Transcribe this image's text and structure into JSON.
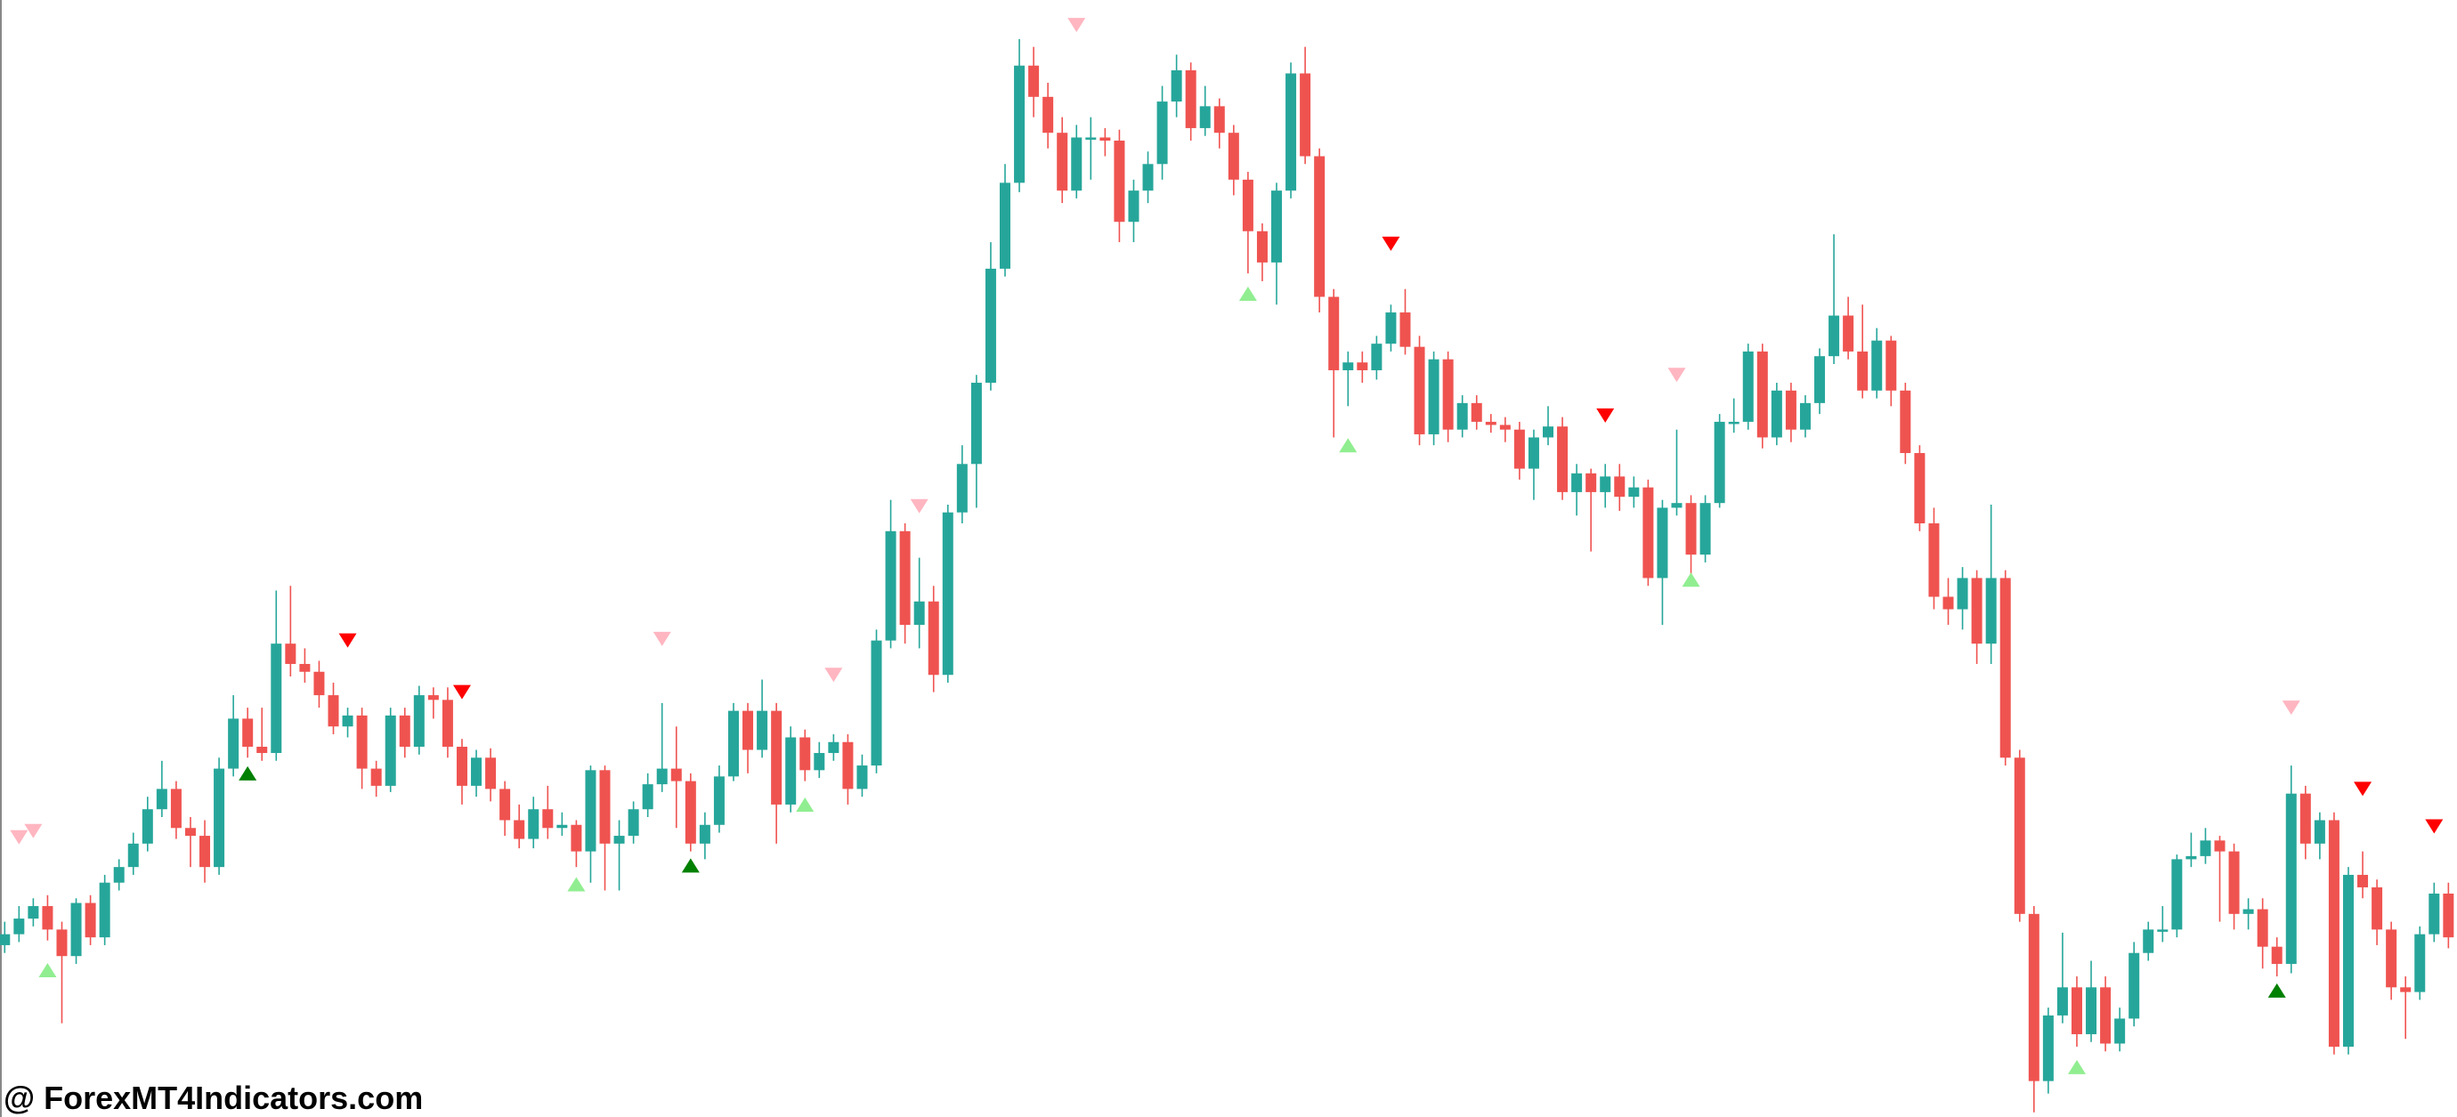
{
  "chart_data": {
    "type": "candlestick",
    "open": [
      110,
      117,
      127,
      135,
      120,
      103,
      137,
      115,
      150,
      160,
      175,
      197,
      210,
      185,
      180,
      160,
      223,
      255,
      237,
      233,
      303,
      290,
      285,
      270,
      250,
      257,
      223,
      212,
      257,
      237,
      270,
      267,
      237,
      212,
      230,
      210,
      190,
      178,
      197,
      185,
      187,
      170,
      222,
      175,
      180,
      197,
      213,
      223,
      215,
      175,
      187,
      218,
      260,
      235,
      260,
      200,
      243,
      222,
      233,
      240,
      210,
      225,
      305,
      375,
      315,
      330,
      283,
      387,
      418,
      470,
      543,
      598,
      673,
      653,
      630,
      593,
      627,
      627,
      625,
      573,
      593,
      610,
      650,
      670,
      633,
      647,
      630,
      600,
      567,
      547,
      593,
      668,
      615,
      525,
      478,
      483,
      478,
      495,
      515,
      493,
      437,
      485,
      440,
      457,
      445,
      443,
      440,
      415,
      435,
      442,
      400,
      412,
      400,
      410,
      397,
      403,
      345,
      390,
      393,
      360,
      393,
      445,
      445,
      490,
      435,
      465,
      440,
      457,
      487,
      513,
      490,
      465,
      497,
      465,
      425,
      380,
      333,
      325,
      345,
      303,
      345,
      230,
      130,
      23,
      65,
      83,
      53,
      83,
      47,
      63,
      105,
      120,
      120,
      165,
      167,
      177,
      170,
      130,
      133,
      109,
      98,
      207,
      175,
      190,
      45,
      155,
      147,
      120,
      83,
      80,
      117,
      143
    ],
    "high": [
      125,
      135,
      140,
      142,
      125,
      140,
      142,
      155,
      165,
      182,
      205,
      228,
      215,
      192,
      190,
      230,
      270,
      262,
      262,
      337,
      340,
      300,
      292,
      278,
      262,
      262,
      228,
      262,
      262,
      276,
      275,
      275,
      242,
      235,
      236,
      215,
      200,
      205,
      212,
      195,
      190,
      225,
      225,
      190,
      202,
      220,
      265,
      250,
      220,
      195,
      225,
      265,
      265,
      280,
      265,
      250,
      248,
      240,
      245,
      245,
      232,
      312,
      395,
      380,
      358,
      340,
      392,
      430,
      475,
      560,
      610,
      690,
      685,
      662,
      640,
      635,
      640,
      633,
      632,
      600,
      618,
      660,
      680,
      675,
      660,
      652,
      635,
      605,
      572,
      598,
      675,
      685,
      620,
      530,
      490,
      490,
      500,
      520,
      530,
      500,
      490,
      490,
      462,
      462,
      450,
      448,
      445,
      440,
      455,
      448,
      418,
      415,
      418,
      418,
      410,
      408,
      395,
      440,
      398,
      398,
      450,
      460,
      495,
      495,
      470,
      470,
      462,
      492,
      565,
      525,
      520,
      505,
      500,
      470,
      430,
      390,
      345,
      352,
      350,
      392,
      350,
      235,
      135,
      70,
      118,
      90,
      100,
      90,
      70,
      112,
      125,
      135,
      168,
      182,
      185,
      180,
      175,
      140,
      140,
      115,
      225,
      212,
      195,
      195,
      160,
      170,
      152,
      125,
      90,
      122,
      150,
      150
    ],
    "low": [
      105,
      112,
      122,
      113,
      60,
      98,
      110,
      110,
      145,
      155,
      170,
      192,
      178,
      160,
      150,
      155,
      218,
      230,
      228,
      228,
      282,
      278,
      262,
      245,
      243,
      210,
      205,
      208,
      230,
      232,
      255,
      230,
      200,
      205,
      202,
      180,
      172,
      172,
      178,
      180,
      160,
      150,
      145,
      145,
      175,
      192,
      208,
      185,
      170,
      165,
      182,
      215,
      220,
      230,
      175,
      195,
      215,
      217,
      228,
      200,
      205,
      220,
      300,
      303,
      300,
      272,
      278,
      380,
      390,
      465,
      538,
      592,
      640,
      620,
      585,
      588,
      600,
      615,
      560,
      560,
      585,
      600,
      640,
      625,
      628,
      620,
      590,
      540,
      535,
      520,
      588,
      610,
      515,
      435,
      455,
      470,
      472,
      490,
      488,
      430,
      430,
      432,
      435,
      440,
      438,
      432,
      408,
      395,
      430,
      395,
      385,
      362,
      390,
      388,
      390,
      340,
      315,
      385,
      345,
      355,
      390,
      438,
      440,
      428,
      430,
      432,
      435,
      450,
      482,
      485,
      460,
      460,
      455,
      418,
      375,
      325,
      315,
      312,
      290,
      290,
      225,
      125,
      3,
      15,
      60,
      45,
      48,
      42,
      42,
      58,
      100,
      112,
      115,
      160,
      162,
      125,
      120,
      120,
      95,
      90,
      92,
      165,
      165,
      40,
      40,
      140,
      110,
      75,
      50,
      75,
      112,
      108
    ],
    "close": [
      117,
      127,
      135,
      120,
      103,
      137,
      115,
      150,
      160,
      175,
      197,
      210,
      185,
      180,
      160,
      223,
      255,
      237,
      233,
      303,
      290,
      285,
      270,
      250,
      257,
      223,
      212,
      257,
      237,
      270,
      267,
      237,
      212,
      230,
      210,
      190,
      178,
      197,
      185,
      187,
      170,
      222,
      175,
      180,
      197,
      213,
      223,
      215,
      175,
      187,
      218,
      260,
      235,
      260,
      200,
      243,
      222,
      233,
      240,
      210,
      225,
      305,
      375,
      315,
      330,
      283,
      387,
      418,
      470,
      543,
      598,
      673,
      653,
      630,
      593,
      627,
      627,
      625,
      573,
      593,
      610,
      650,
      670,
      633,
      647,
      630,
      600,
      567,
      547,
      593,
      668,
      615,
      525,
      478,
      483,
      478,
      495,
      515,
      493,
      437,
      485,
      440,
      457,
      445,
      443,
      440,
      415,
      435,
      442,
      400,
      412,
      400,
      410,
      397,
      403,
      345,
      390,
      393,
      360,
      393,
      445,
      445,
      490,
      435,
      465,
      440,
      457,
      487,
      513,
      490,
      465,
      497,
      465,
      425,
      380,
      333,
      325,
      345,
      303,
      345,
      230,
      130,
      23,
      65,
      83,
      53,
      83,
      47,
      63,
      105,
      120,
      120,
      165,
      167,
      177,
      170,
      130,
      133,
      109,
      98,
      207,
      175,
      190,
      45,
      155,
      147,
      120,
      83,
      80,
      117,
      143,
      115
    ],
    "up_color": "#26a69a",
    "down_color": "#ef5350",
    "ylim": [
      0,
      715
    ],
    "signals": [
      {
        "direction": "up",
        "color": "#008000",
        "index": 17,
        "value": 220
      },
      {
        "direction": "up",
        "color": "#008000",
        "index": 48,
        "value": 161
      },
      {
        "direction": "up",
        "color": "#008000",
        "index": 159,
        "value": 81
      },
      {
        "direction": "up",
        "color": "#90ee90",
        "index": 3,
        "value": 94
      },
      {
        "direction": "up",
        "color": "#90ee90",
        "index": 40,
        "value": 149
      },
      {
        "direction": "up",
        "color": "#90ee90",
        "index": 56,
        "value": 200
      },
      {
        "direction": "up",
        "color": "#90ee90",
        "index": 87,
        "value": 527
      },
      {
        "direction": "up",
        "color": "#90ee90",
        "index": 94,
        "value": 430
      },
      {
        "direction": "up",
        "color": "#90ee90",
        "index": 118,
        "value": 344
      },
      {
        "direction": "up",
        "color": "#90ee90",
        "index": 145,
        "value": 32
      },
      {
        "direction": "down",
        "color": "#ff0000",
        "index": 24,
        "value": 305
      },
      {
        "direction": "down",
        "color": "#ff0000",
        "index": 32,
        "value": 272
      },
      {
        "direction": "down",
        "color": "#ff0000",
        "index": 97,
        "value": 559
      },
      {
        "direction": "down",
        "color": "#ff0000",
        "index": 112,
        "value": 449
      },
      {
        "direction": "down",
        "color": "#ff0000",
        "index": 165,
        "value": 210
      },
      {
        "direction": "down",
        "color": "#ff0000",
        "index": 170,
        "value": 186
      },
      {
        "direction": "down",
        "color": "#ffb6c1",
        "index": 1,
        "value": 179
      },
      {
        "direction": "down",
        "color": "#ffb6c1",
        "index": 2,
        "value": 183
      },
      {
        "direction": "down",
        "color": "#ffb6c1",
        "index": 46,
        "value": 306
      },
      {
        "direction": "down",
        "color": "#ffb6c1",
        "index": 58,
        "value": 283
      },
      {
        "direction": "down",
        "color": "#ffb6c1",
        "index": 64,
        "value": 391
      },
      {
        "direction": "down",
        "color": "#ffb6c1",
        "index": 75,
        "value": 699
      },
      {
        "direction": "down",
        "color": "#ffb6c1",
        "index": 117,
        "value": 475
      },
      {
        "direction": "down",
        "color": "#ffb6c1",
        "index": 160,
        "value": 262
      }
    ],
    "watermark": "@ ForexMT4Indicators.com"
  }
}
